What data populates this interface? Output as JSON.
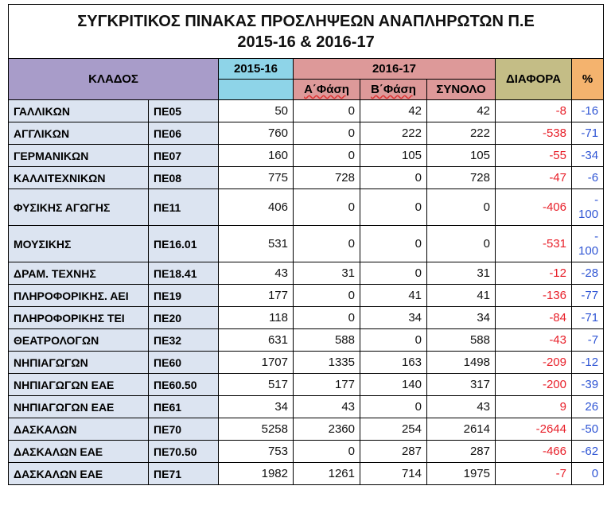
{
  "title_line1": "ΣΥΓΚΡΙΤΙΚΟΣ ΠΙΝΑΚΑΣ ΠΡΟΣΛΗΨΕΩΝ ΑΝΑΠΛΗΡΩΤΩΝ Π.Ε",
  "title_line2": "2015-16 & 2016-17",
  "headers": {
    "klados": "ΚΛΑΔΟΣ",
    "year1": "2015-16",
    "year2": "2016-17",
    "phase_a": "Α΄Φάση",
    "phase_b": "Β΄Φάση",
    "total": "ΣΥΝΟΛΟ",
    "diff": "ΔΙΑΦΟΡΑ",
    "pct": "%"
  },
  "rows": [
    {
      "name": "ΓΑΛΛΙΚΩΝ",
      "code": "ΠΕ05",
      "y1516": "50",
      "a": "0",
      "b": "42",
      "total": "42",
      "diff": "-8",
      "pct": "-16"
    },
    {
      "name": "ΑΓΓΛΙΚΩΝ",
      "code": "ΠΕ06",
      "y1516": "760",
      "a": "0",
      "b": "222",
      "total": "222",
      "diff": "-538",
      "pct": "-71"
    },
    {
      "name": "ΓΕΡΜΑΝΙΚΩΝ",
      "code": "ΠΕ07",
      "y1516": "160",
      "a": "0",
      "b": "105",
      "total": "105",
      "diff": "-55",
      "pct": "-34"
    },
    {
      "name": "ΚΑΛΛΙΤΕΧΝΙΚΩΝ",
      "code": "ΠΕ08",
      "y1516": "775",
      "a": "728",
      "b": "0",
      "total": "728",
      "diff": "-47",
      "pct": "-6"
    },
    {
      "name": "ΦΥΣΙΚΗΣ ΑΓΩΓΗΣ",
      "code": "ΠΕ11",
      "y1516": "406",
      "a": "0",
      "b": "0",
      "total": "0",
      "diff": "-406",
      "pct_top": "-",
      "pct_bottom": "100"
    },
    {
      "name": "ΜΟΥΣΙΚΗΣ",
      "code": "ΠΕ16.01",
      "y1516": "531",
      "a": "0",
      "b": "0",
      "total": "0",
      "diff": "-531",
      "pct_top": "-",
      "pct_bottom": "100"
    },
    {
      "name": "ΔΡΑΜ. ΤΕΧΝΗΣ",
      "code": "ΠΕ18.41",
      "y1516": "43",
      "a": "31",
      "b": "0",
      "total": "31",
      "diff": "-12",
      "pct": "-28"
    },
    {
      "name": "ΠΛΗΡΟΦΟΡΙΚΗΣ. ΑΕΙ",
      "code": "ΠΕ19",
      "y1516": "177",
      "a": "0",
      "b": "41",
      "total": "41",
      "diff": "-136",
      "pct": "-77"
    },
    {
      "name": "ΠΛΗΡΟΦΟΡΙΚΗΣ ΤΕΙ",
      "code": "ΠΕ20",
      "y1516": "118",
      "a": "0",
      "b": "34",
      "total": "34",
      "diff": "-84",
      "pct": "-71"
    },
    {
      "name": "ΘΕΑΤΡΟΛΟΓΩΝ",
      "code": "ΠΕ32",
      "y1516": "631",
      "a": "588",
      "b": "0",
      "total": "588",
      "diff": "-43",
      "pct": "-7"
    },
    {
      "name": "ΝΗΠΙΑΓΩΓΩΝ",
      "code": "ΠΕ60",
      "y1516": "1707",
      "a": "1335",
      "b": "163",
      "total": "1498",
      "diff": "-209",
      "pct": "-12"
    },
    {
      "name": "ΝΗΠΙΑΓΩΓΩΝ ΕΑΕ",
      "code": "ΠΕ60.50",
      "y1516": "517",
      "a": "177",
      "b": "140",
      "total": "317",
      "diff": "-200",
      "pct": "-39"
    },
    {
      "name": "ΝΗΠΙΑΓΩΓΩΝ ΕΑΕ",
      "code": "ΠΕ61",
      "y1516": "34",
      "a": "43",
      "b": "0",
      "total": "43",
      "diff": "9",
      "pct": "26"
    },
    {
      "name": "ΔΑΣΚΑΛΩΝ",
      "code": "ΠΕ70",
      "y1516": "5258",
      "a": "2360",
      "b": "254",
      "total": "2614",
      "diff": "-2644",
      "pct": "-50"
    },
    {
      "name": "ΔΑΣΚΑΛΩΝ ΕΑΕ",
      "code": "ΠΕ70.50",
      "y1516": "753",
      "a": "0",
      "b": "287",
      "total": "287",
      "diff": "-466",
      "pct": "-62"
    },
    {
      "name": "ΔΑΣΚΑΛΩΝ ΕΑΕ",
      "code": "ΠΕ71",
      "y1516": "1982",
      "a": "1261",
      "b": "714",
      "total": "1975",
      "diff": "-7",
      "pct": "0"
    }
  ],
  "colors": {
    "klados_header": "#a89cc9",
    "year1_header": "#8ed4e8",
    "year2_header": "#dd9999",
    "diff_header": "#c4bd86",
    "pct_header": "#f4b36e",
    "label_cells": "#dce4f1",
    "diff_text": "#e8202a",
    "pct_text": "#2f55d4"
  }
}
